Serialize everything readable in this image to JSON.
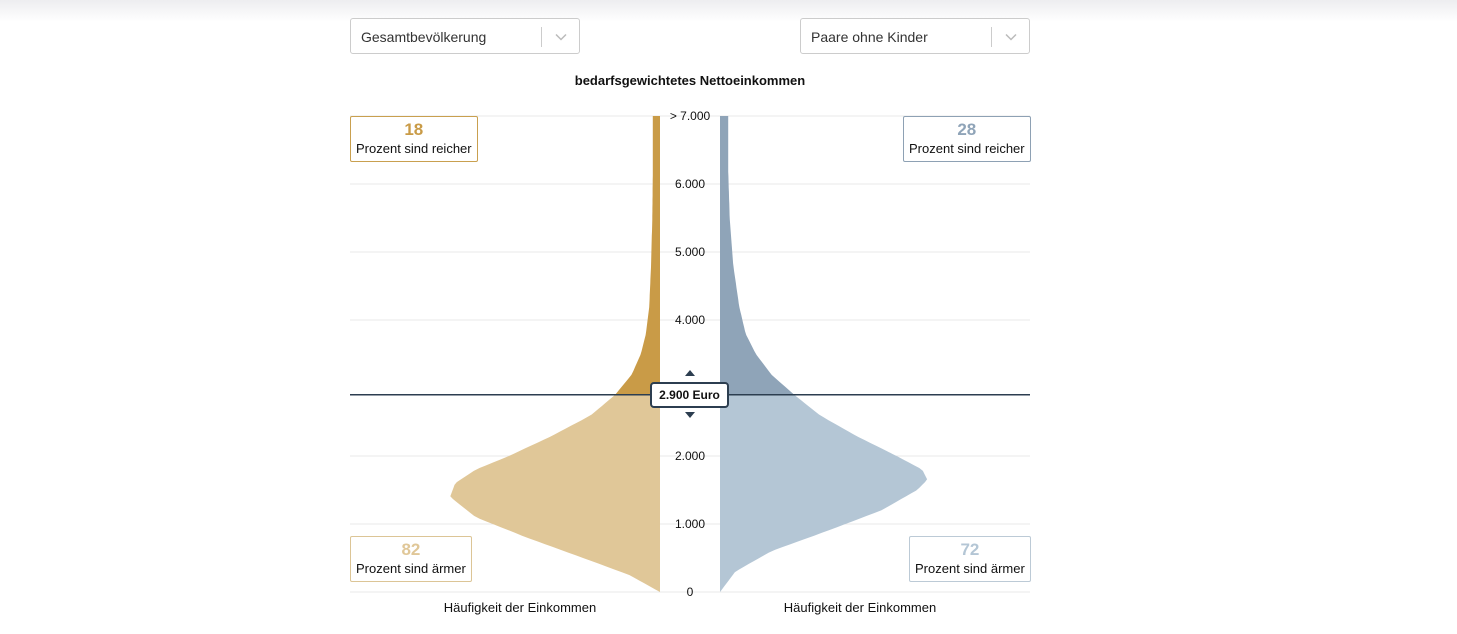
{
  "controls": {
    "left_select": {
      "value": "Gesamtbevölkerung",
      "icon": "chevron-down-icon"
    },
    "right_select": {
      "value": "Paare ohne Kinder",
      "icon": "chevron-down-icon"
    }
  },
  "colors": {
    "left_above": "#c99b47",
    "left_below": "#e0c798",
    "right_above": "#8fa4b8",
    "right_below": "#b4c6d5",
    "marker_line": "#2c3e50"
  },
  "chart_data": {
    "type": "violin",
    "title": "bedarfsgewichtetes Nettoeinkommen",
    "ylim": [
      0,
      7000
    ],
    "y_ticks": [
      "0",
      "1.000",
      "2.000",
      "2.900 Euro",
      "4.000",
      "5.000",
      "6.000",
      "> 7.000"
    ],
    "y_tick_values": [
      0,
      1000,
      2000,
      2900,
      4000,
      5000,
      6000,
      7000
    ],
    "threshold": {
      "value": 2900,
      "label": "2.900 Euro"
    },
    "xlabel_left": "Häufigkeit der Einkommen",
    "xlabel_right": "Häufigkeit der Einkommen",
    "series": [
      {
        "name": "Gesamtbevölkerung",
        "side": "left",
        "percent_richer": "18",
        "percent_poorer": "82",
        "density": [
          [
            0,
            0.0
          ],
          [
            250,
            0.12
          ],
          [
            500,
            0.3
          ],
          [
            800,
            0.52
          ],
          [
            1100,
            0.72
          ],
          [
            1400,
            0.82
          ],
          [
            1600,
            0.8
          ],
          [
            1800,
            0.72
          ],
          [
            2000,
            0.59
          ],
          [
            2300,
            0.42
          ],
          [
            2600,
            0.27
          ],
          [
            2900,
            0.175
          ],
          [
            3200,
            0.11
          ],
          [
            3500,
            0.075
          ],
          [
            3800,
            0.055
          ],
          [
            4200,
            0.042
          ],
          [
            4800,
            0.035
          ],
          [
            5500,
            0.03
          ],
          [
            6200,
            0.028
          ],
          [
            7000,
            0.028
          ]
        ]
      },
      {
        "name": "Paare ohne Kinder",
        "side": "right",
        "percent_richer": "28",
        "percent_poorer": "72",
        "density": [
          [
            0,
            0.0
          ],
          [
            100,
            0.02
          ],
          [
            300,
            0.06
          ],
          [
            600,
            0.2
          ],
          [
            900,
            0.42
          ],
          [
            1200,
            0.63
          ],
          [
            1500,
            0.77
          ],
          [
            1650,
            0.81
          ],
          [
            1800,
            0.79
          ],
          [
            2000,
            0.69
          ],
          [
            2300,
            0.53
          ],
          [
            2600,
            0.39
          ],
          [
            2900,
            0.29
          ],
          [
            3200,
            0.2
          ],
          [
            3500,
            0.14
          ],
          [
            3800,
            0.1
          ],
          [
            4200,
            0.075
          ],
          [
            4800,
            0.052
          ],
          [
            5500,
            0.038
          ],
          [
            6200,
            0.032
          ],
          [
            7000,
            0.032
          ]
        ]
      }
    ]
  },
  "labels": {
    "reicher": "Prozent sind reicher",
    "aermer": "Prozent sind ärmer"
  }
}
